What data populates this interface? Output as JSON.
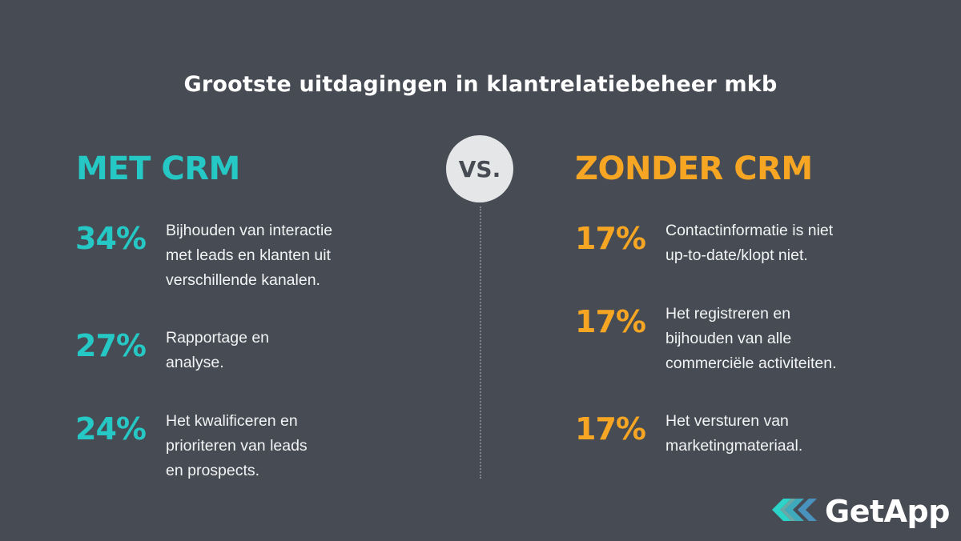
{
  "title": "Grootste uitdagingen in klantrelatiebeheer mkb",
  "vs_label": "VS.",
  "colors": {
    "teal": "#25c8c4",
    "orange": "#f6a623",
    "background": "#474b53"
  },
  "left": {
    "heading": "MET CRM",
    "items": [
      {
        "percent": "34%",
        "text": "Bijhouden van interactie\nmet leads en klanten uit\nverschillende kanalen."
      },
      {
        "percent": "27%",
        "text": "Rapportage en\nanalyse."
      },
      {
        "percent": "24%",
        "text": "Het kwalificeren en\nprioriteren van leads\nen prospects."
      }
    ]
  },
  "right": {
    "heading": "ZONDER CRM",
    "items": [
      {
        "percent": "17%",
        "text": "Contactinformatie is niet\nup-to-date/klopt niet."
      },
      {
        "percent": "17%",
        "text": "Het registreren en\nbijhouden van alle\ncommerciële activiteiten."
      },
      {
        "percent": "17%",
        "text": "Het versturen van\nmarketingmateriaal."
      }
    ]
  },
  "logo": {
    "icon": "getapp-chevrons-icon",
    "text": "GetApp"
  }
}
